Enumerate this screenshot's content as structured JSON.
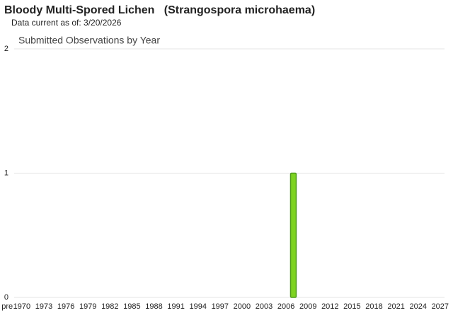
{
  "chart_data": {
    "type": "bar",
    "title": "Bloody Multi-Spored Lichen   (Strangospora microhaema)",
    "subtitle": "Data current as of: 3/20/2026",
    "chart_title": "Submitted Observations by Year",
    "categories": [
      "pre",
      null,
      "1970",
      null,
      null,
      "1973",
      null,
      null,
      "1976",
      null,
      null,
      "1979",
      null,
      null,
      "1982",
      null,
      null,
      "1985",
      null,
      null,
      "1988",
      null,
      null,
      "1991",
      null,
      null,
      "1994",
      null,
      null,
      "1997",
      null,
      null,
      "2000",
      null,
      null,
      "2003",
      null,
      null,
      "2006",
      null,
      null,
      "2009",
      null,
      null,
      "2012",
      null,
      null,
      "2015",
      null,
      null,
      "2018",
      null,
      null,
      "2021",
      null,
      null,
      "2024",
      null,
      null,
      "2027"
    ],
    "values": [
      0,
      0,
      0,
      0,
      0,
      0,
      0,
      0,
      0,
      0,
      0,
      0,
      0,
      0,
      0,
      0,
      0,
      0,
      0,
      0,
      0,
      0,
      0,
      0,
      0,
      0,
      0,
      0,
      0,
      0,
      0,
      0,
      0,
      0,
      0,
      0,
      0,
      0,
      0,
      1,
      0,
      0,
      0,
      0,
      0,
      0,
      0,
      0,
      0,
      0,
      0,
      0,
      0,
      0,
      0,
      0,
      0,
      0,
      0,
      0
    ],
    "color": "#7ed321",
    "ylim": [
      0,
      2
    ],
    "yticks": [
      0,
      1,
      2
    ],
    "grid": true
  }
}
